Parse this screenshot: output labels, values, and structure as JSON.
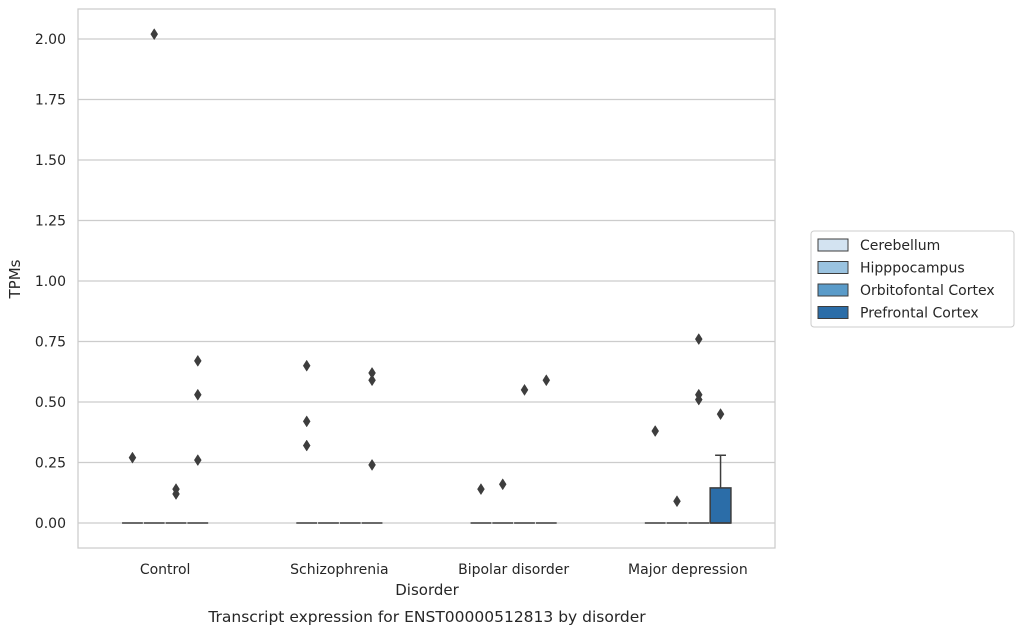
{
  "chart_data": {
    "type": "box",
    "title": "",
    "caption": "Transcript expression for ENST00000512813 by disorder",
    "xlabel": "Disorder",
    "ylabel": "TPMs",
    "ylim": [
      -0.1,
      2.12
    ],
    "yticks": [
      "0.00",
      "0.25",
      "0.50",
      "0.75",
      "1.00",
      "1.25",
      "1.50",
      "1.75",
      "2.00"
    ],
    "categories": [
      "Control",
      "Schizophrenia",
      "Bipolar disorder",
      "Major depression"
    ],
    "grid": "horizontal",
    "legend_position": "right",
    "series": [
      {
        "name": "Cerebellum",
        "color": "#d3e3f1",
        "boxes": [
          {
            "q1": 0,
            "median": 0,
            "q3": 0,
            "whisker_low": 0,
            "whisker_high": 0,
            "outliers": [
              0.27
            ]
          },
          {
            "q1": 0,
            "median": 0,
            "q3": 0,
            "whisker_low": 0,
            "whisker_high": 0,
            "outliers": [
              0.65,
              0.42,
              0.32
            ]
          },
          {
            "q1": 0,
            "median": 0,
            "q3": 0,
            "whisker_low": 0,
            "whisker_high": 0,
            "outliers": [
              0.14
            ]
          },
          {
            "q1": 0,
            "median": 0,
            "q3": 0,
            "whisker_low": 0,
            "whisker_high": 0,
            "outliers": [
              0.38
            ]
          }
        ]
      },
      {
        "name": "Hipppocampus",
        "color": "#9ac3e0",
        "boxes": [
          {
            "q1": 0,
            "median": 0,
            "q3": 0,
            "whisker_low": 0,
            "whisker_high": 0,
            "outliers": [
              2.02
            ]
          },
          {
            "q1": 0,
            "median": 0,
            "q3": 0,
            "whisker_low": 0,
            "whisker_high": 0,
            "outliers": []
          },
          {
            "q1": 0,
            "median": 0,
            "q3": 0,
            "whisker_low": 0,
            "whisker_high": 0,
            "outliers": [
              0.16
            ]
          },
          {
            "q1": 0,
            "median": 0,
            "q3": 0,
            "whisker_low": 0,
            "whisker_high": 0,
            "outliers": [
              0.09
            ]
          }
        ]
      },
      {
        "name": "Orbitofontal Cortex",
        "color": "#5a9bc9",
        "boxes": [
          {
            "q1": 0,
            "median": 0,
            "q3": 0,
            "whisker_low": 0,
            "whisker_high": 0,
            "outliers": [
              0.14,
              0.12
            ]
          },
          {
            "q1": 0,
            "median": 0,
            "q3": 0,
            "whisker_low": 0,
            "whisker_high": 0,
            "outliers": []
          },
          {
            "q1": 0,
            "median": 0,
            "q3": 0,
            "whisker_low": 0,
            "whisker_high": 0,
            "outliers": [
              0.55
            ]
          },
          {
            "q1": 0,
            "median": 0,
            "q3": 0,
            "whisker_low": 0,
            "whisker_high": 0,
            "outliers": [
              0.76,
              0.53,
              0.51
            ]
          }
        ]
      },
      {
        "name": "Prefrontal Cortex",
        "color": "#2b6da8",
        "boxes": [
          {
            "q1": 0,
            "median": 0,
            "q3": 0,
            "whisker_low": 0,
            "whisker_high": 0,
            "outliers": [
              0.67,
              0.53,
              0.26
            ]
          },
          {
            "q1": 0,
            "median": 0,
            "q3": 0,
            "whisker_low": 0,
            "whisker_high": 0,
            "outliers": [
              0.62,
              0.59,
              0.24
            ]
          },
          {
            "q1": 0,
            "median": 0,
            "q3": 0,
            "whisker_low": 0,
            "whisker_high": 0,
            "outliers": [
              0.59
            ]
          },
          {
            "q1": 0,
            "median": 0,
            "q3": 0.145,
            "whisker_low": 0,
            "whisker_high": 0.28,
            "outliers": [
              0.45
            ]
          }
        ]
      }
    ]
  }
}
